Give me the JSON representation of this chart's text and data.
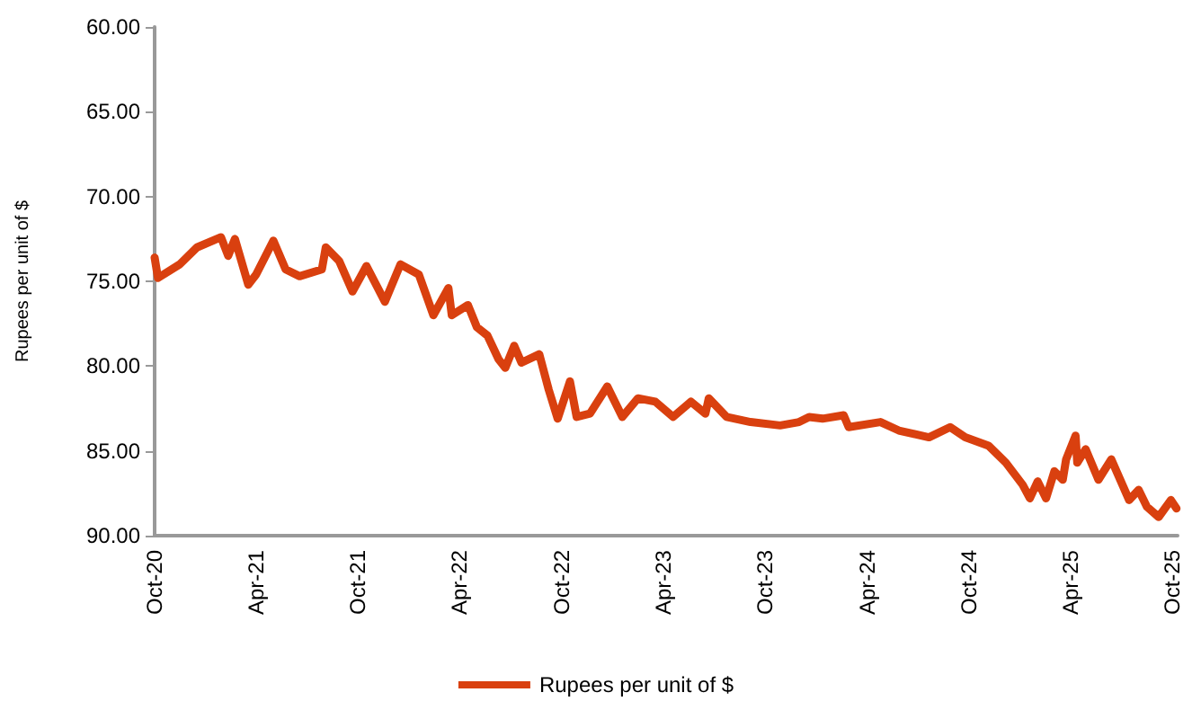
{
  "chart_data": {
    "type": "line",
    "ylabel": "Rupees per unit of $",
    "legend": "bottom",
    "grid": false,
    "marker": "none",
    "line_style": "solid",
    "xlim": [
      "2020-10-01",
      "2025-10-10"
    ],
    "xticks": [
      {
        "value": "2020-10-01",
        "label": "Oct-20"
      },
      {
        "value": "2021-04-01",
        "label": "Apr-21"
      },
      {
        "value": "2021-10-01",
        "label": "Oct-21"
      },
      {
        "value": "2022-04-01",
        "label": "Apr-22"
      },
      {
        "value": "2022-10-01",
        "label": "Oct-22"
      },
      {
        "value": "2023-04-01",
        "label": "Apr-23"
      },
      {
        "value": "2023-10-01",
        "label": "Oct-23"
      },
      {
        "value": "2024-04-01",
        "label": "Apr-24"
      },
      {
        "value": "2024-10-01",
        "label": "Oct-24"
      },
      {
        "value": "2025-04-01",
        "label": "Apr-25"
      },
      {
        "value": "2025-10-01",
        "label": "Oct-25"
      }
    ],
    "ylim": [
      90,
      60
    ],
    "yticks": [
      {
        "value": 60,
        "label": "60.00"
      },
      {
        "value": 65,
        "label": "65.00"
      },
      {
        "value": 70,
        "label": "70.00"
      },
      {
        "value": 75,
        "label": "75.00"
      },
      {
        "value": 80,
        "label": "80.00"
      },
      {
        "value": 85,
        "label": "85.00"
      },
      {
        "value": 90,
        "label": "90.00"
      }
    ],
    "x": [
      "2020-10-01",
      "2020-10-07",
      "2020-11-15",
      "2020-12-16",
      "2021-01-28",
      "2021-02-10",
      "2021-02-22",
      "2021-03-18",
      "2021-04-01",
      "2021-05-02",
      "2021-05-24",
      "2021-06-18",
      "2021-07-28",
      "2021-08-04",
      "2021-08-28",
      "2021-09-21",
      "2021-10-16",
      "2021-11-18",
      "2021-12-16",
      "2022-01-18",
      "2022-02-13",
      "2022-03-12",
      "2022-03-18",
      "2022-04-16",
      "2022-05-02",
      "2022-05-21",
      "2022-06-10",
      "2022-06-22",
      "2022-07-08",
      "2022-07-21",
      "2022-08-22",
      "2022-09-08",
      "2022-09-24",
      "2022-10-16",
      "2022-10-28",
      "2022-11-21",
      "2022-12-22",
      "2023-01-18",
      "2023-02-15",
      "2023-03-18",
      "2023-04-19",
      "2023-05-21",
      "2023-06-16",
      "2023-06-22",
      "2023-07-24",
      "2023-09-05",
      "2023-10-28",
      "2023-12-01",
      "2023-12-19",
      "2024-01-12",
      "2024-02-19",
      "2024-02-28",
      "2024-04-25",
      "2024-05-28",
      "2024-07-21",
      "2024-08-28",
      "2024-09-24",
      "2024-11-05",
      "2024-12-06",
      "2025-01-05",
      "2025-01-18",
      "2025-02-01",
      "2025-02-16",
      "2025-03-03",
      "2025-03-18",
      "2025-03-24",
      "2025-04-10",
      "2025-04-13",
      "2025-04-28",
      "2025-05-21",
      "2025-06-13",
      "2025-07-15",
      "2025-08-01",
      "2025-08-16",
      "2025-09-06",
      "2025-09-28",
      "2025-10-08"
    ],
    "series": [
      {
        "name": "Rupees per unit of $",
        "color": "#d9400f",
        "values": [
          73.6,
          74.8,
          74.0,
          73.0,
          72.4,
          73.5,
          72.5,
          75.2,
          74.6,
          72.6,
          74.3,
          74.7,
          74.3,
          73.0,
          73.8,
          75.6,
          74.1,
          76.2,
          74.0,
          74.6,
          77.0,
          75.4,
          77.0,
          76.4,
          77.7,
          78.2,
          79.6,
          80.1,
          78.8,
          79.8,
          79.3,
          81.4,
          83.1,
          80.9,
          83.0,
          82.8,
          81.2,
          83.0,
          81.9,
          82.1,
          83.0,
          82.1,
          82.8,
          81.9,
          83.0,
          83.3,
          83.5,
          83.3,
          83.0,
          83.1,
          82.9,
          83.6,
          83.3,
          83.8,
          84.2,
          83.6,
          84.2,
          84.7,
          85.7,
          87.0,
          87.8,
          86.8,
          87.8,
          86.2,
          86.7,
          85.5,
          84.1,
          85.7,
          84.9,
          86.7,
          85.5,
          87.9,
          87.3,
          88.3,
          88.9,
          87.9,
          88.4
        ]
      }
    ]
  }
}
